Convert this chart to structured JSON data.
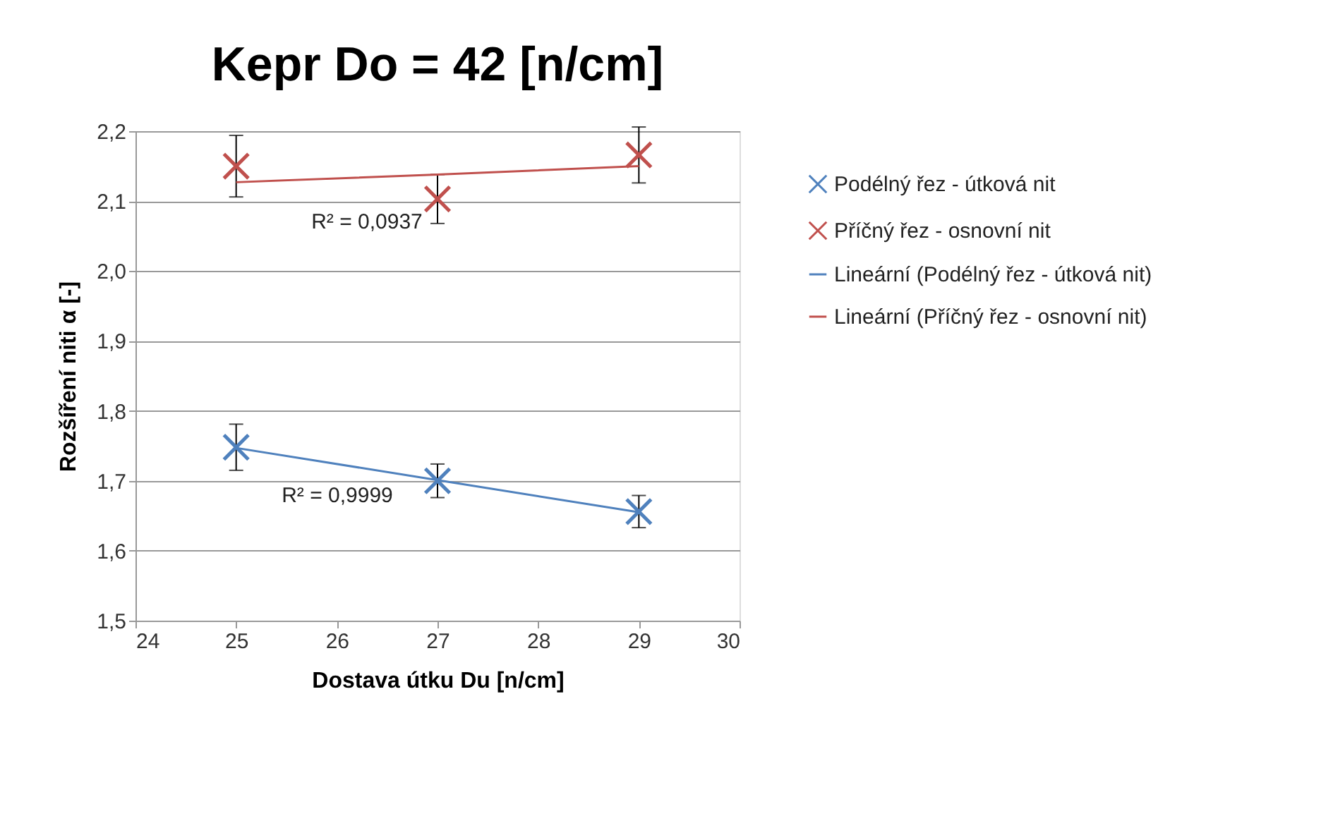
{
  "chart_data": {
    "type": "scatter",
    "title": "Kepr Do = 42 [n/cm]",
    "xlabel": "Dostava útku Du [n/cm]",
    "ylabel": "Rozšíření niti α [-]",
    "x": [
      25,
      27,
      29
    ],
    "series": [
      {
        "name": "Podélný řez - útková nit",
        "color": "#4f81bd",
        "values": [
          1.748,
          1.7,
          1.656
        ],
        "errors": [
          0.033,
          0.024,
          0.023
        ]
      },
      {
        "name": "Příčný řez - osnovní nit",
        "color": "#c0504d",
        "values": [
          2.15,
          2.103,
          2.166
        ],
        "errors": [
          0.044,
          0.035,
          0.04
        ]
      },
      {
        "name": "Lineární (Podélný řez - útková nit)",
        "type": "line",
        "marker": "none",
        "color": "#4f81bd",
        "values": [
          1.747,
          1.701,
          1.655
        ]
      },
      {
        "name": "Lineární (Příčný řez - osnovní nit)",
        "type": "line",
        "marker": "none",
        "color": "#c0504d",
        "values": [
          2.127,
          2.138,
          2.15
        ]
      }
    ],
    "marker": "cross",
    "line_style": "solid",
    "xlim": [
      24,
      30
    ],
    "xticks": [
      24,
      25,
      26,
      27,
      28,
      29,
      30
    ],
    "ylim": [
      1.5,
      2.2
    ],
    "yticks": [
      {
        "value": 1.5,
        "label": "1,5"
      },
      {
        "value": 1.6,
        "label": "1,6"
      },
      {
        "value": 1.7,
        "label": "1,7"
      },
      {
        "value": 1.8,
        "label": "1,8"
      },
      {
        "value": 1.9,
        "label": "1,9"
      },
      {
        "value": 2.0,
        "label": "2,0"
      },
      {
        "value": 2.1,
        "label": "2,1"
      },
      {
        "value": 2.2,
        "label": "2,2"
      }
    ],
    "grid": "y",
    "legend": "right",
    "annotations": [
      "R² = 0,0937",
      "R² = 0,9999"
    ]
  }
}
